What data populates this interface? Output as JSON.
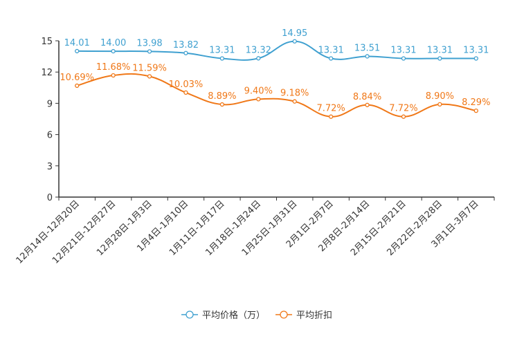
{
  "chart_data": {
    "type": "line",
    "categories": [
      "12月14日-12月20日",
      "12月21日-12月27日",
      "12月28日-1月3日",
      "1月4日-1月10日",
      "1月11日-1月17日",
      "1月18日-1月24日",
      "1月25日-1月31日",
      "2月1日-2月7日",
      "2月8日-2月14日",
      "2月15日-2月21日",
      "2月22日-2月28日",
      "3月1日-3月7日"
    ],
    "ylim": [
      0,
      15
    ],
    "yticks": [
      "0",
      "3",
      "6",
      "9",
      "12",
      "15"
    ],
    "series": [
      {
        "name": "平均价格（万）",
        "color": "#3fa0d0",
        "values": [
          14.01,
          14.0,
          13.98,
          13.82,
          13.31,
          13.32,
          14.95,
          13.31,
          13.51,
          13.31,
          13.31,
          13.31
        ],
        "labels": [
          "14.01",
          "14.00",
          "13.98",
          "13.82",
          "13.31",
          "13.32",
          "14.95",
          "13.31",
          "13.51",
          "13.31",
          "13.31",
          "13.31"
        ]
      },
      {
        "name": "平均折扣",
        "color": "#f07818",
        "values": [
          10.69,
          11.68,
          11.59,
          10.03,
          8.89,
          9.4,
          9.18,
          7.72,
          8.84,
          7.72,
          8.9,
          8.29
        ],
        "labels": [
          "10.69%",
          "11.68%",
          "11.59%",
          "10.03%",
          "8.89%",
          "9.40%",
          "9.18%",
          "7.72%",
          "8.84%",
          "7.72%",
          "8.90%",
          "8.29%"
        ]
      }
    ]
  }
}
